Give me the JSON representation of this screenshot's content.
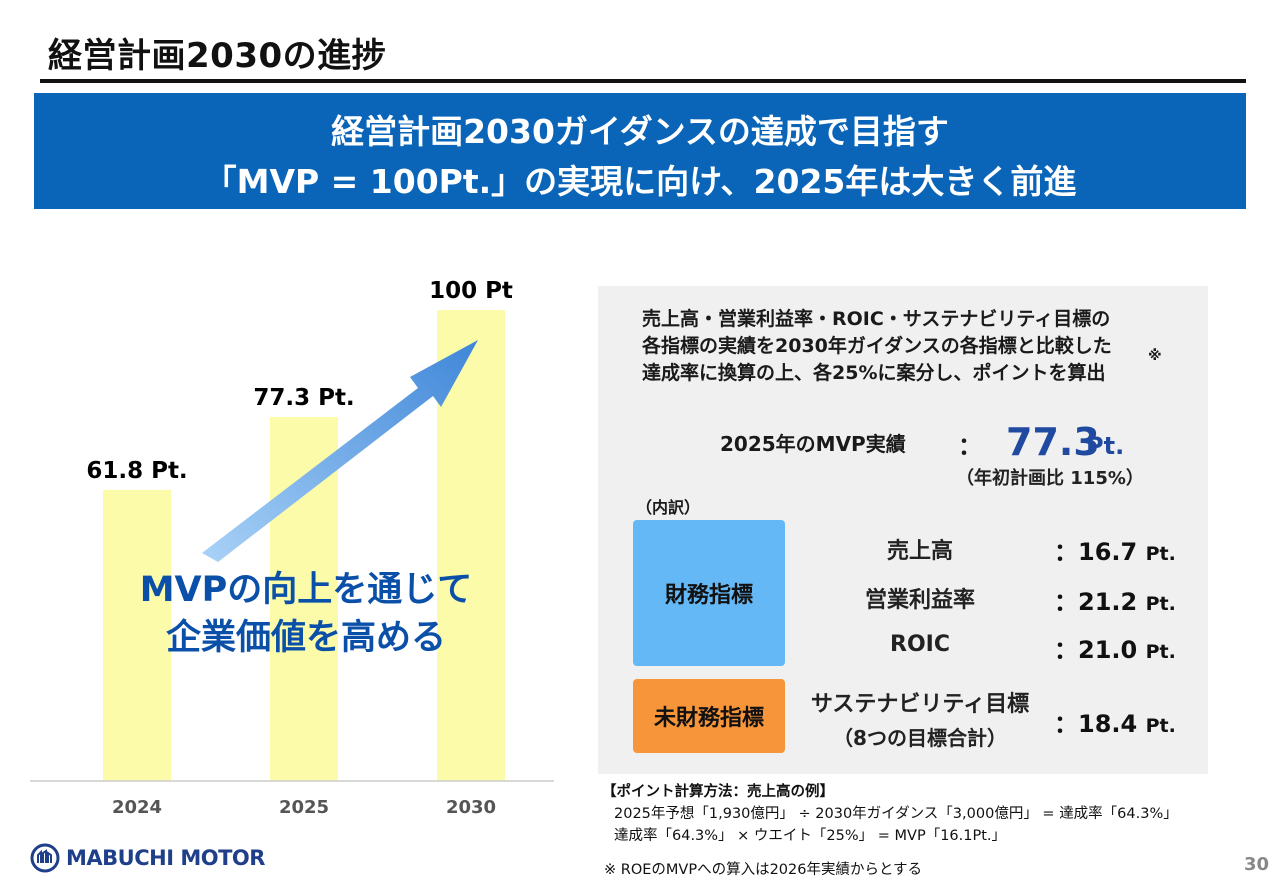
{
  "header": {
    "title": "経営計画2030の進捗"
  },
  "banner": {
    "line1": "経営計画2030ガイダンスの達成で目指す",
    "line2": "「MVP = 100Pt.」の実現に向け、2025年は大きく前進"
  },
  "chart_data": {
    "type": "bar",
    "categories": [
      "2024",
      "2025",
      "2030"
    ],
    "values": [
      61.8,
      77.3,
      100
    ],
    "data_labels": [
      "61.8 Pt.",
      "77.3 Pt.",
      "100 Pt"
    ],
    "ylim": [
      0,
      100
    ],
    "title": "",
    "xlabel": "",
    "ylabel": "",
    "bar_color": "#fbfbaa",
    "arrow_color": "#4a90d9",
    "caption_line1": "MVPの向上を通じて",
    "caption_line2": "企業価値を高める"
  },
  "panel": {
    "desc_line1": "売上高・営業利益率・ROIC・サステナビリティ目標の",
    "desc_line2": "各指標の実績を2030年ガイダンスの各指標と比較した",
    "desc_line3": "達成率に換算の上、各25%に案分し、ポイントを算出",
    "footnote_mark": "※",
    "mvp_label": "2025年のMVP実績",
    "mvp_colon": "：",
    "mvp_value": "77.3",
    "mvp_unit": "Pt.",
    "mvp_note": "（年初計画比 115%）",
    "breakdown_label": "（内訳）",
    "financial_label": "財務指標",
    "nonfinancial_label": "未財務指標",
    "metrics": [
      {
        "name": "売上高",
        "value": "：16.7",
        "unit": "Pt."
      },
      {
        "name": "営業利益率",
        "value": "：21.2",
        "unit": "Pt."
      },
      {
        "name": "ROIC",
        "value": "：21.0",
        "unit": "Pt."
      },
      {
        "name": "サステナビリティ目標",
        "name2": "（8つの目標合計）",
        "value": "：18.4",
        "unit": "Pt."
      }
    ],
    "colors": {
      "financial": "#64b8f5",
      "nonfinancial": "#f7953a",
      "panel_bg": "#f0f0f0"
    }
  },
  "notes": {
    "calc_title": "【ポイント計算方法：売上高の例】",
    "calc_line1": "2025年予想「1,930億円」 ÷ 2030年ガイダンス「3,000億円」 = 達成率「64.3%」",
    "calc_line2": "達成率「64.3%」 × ウエイト「25%」 = MVP「16.1Pt.」",
    "roe_note": "※ ROEのMVPへの算入は2026年実績からとする"
  },
  "footer": {
    "logo_text": "MABUCHI MOTOR",
    "page_number": "30"
  }
}
